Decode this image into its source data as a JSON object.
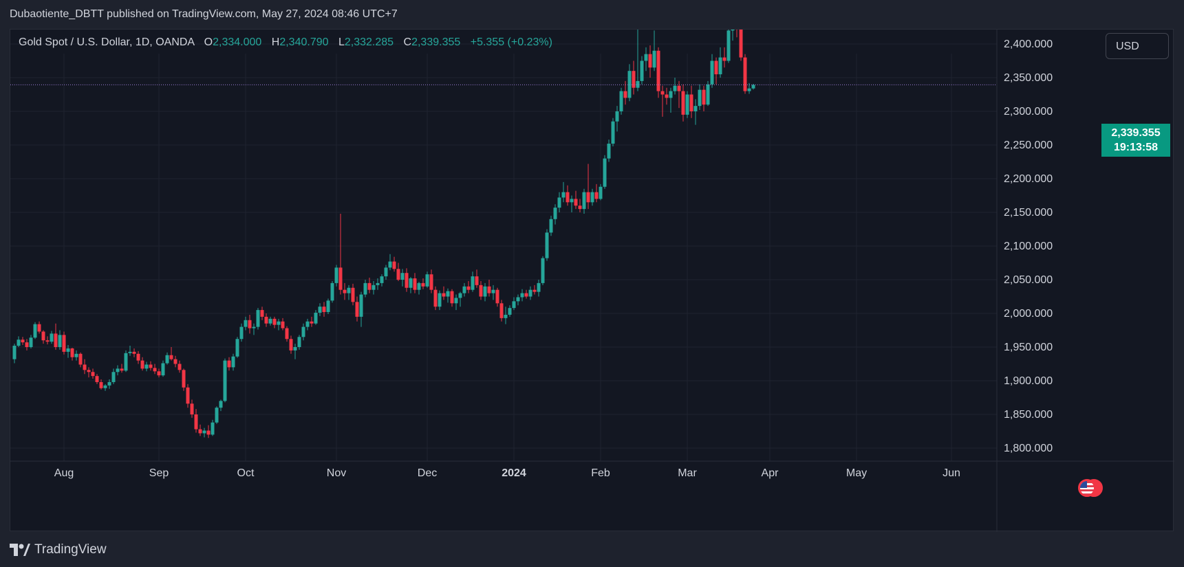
{
  "publisher_line": "Dubaotiente_DBTT published on TradingView.com, May 27, 2024 08:46 UTC+7",
  "legend": {
    "symbol": "Gold Spot / U.S. Dollar, 1D, OANDA",
    "o_label": "O",
    "open": "2,334.000",
    "h_label": "H",
    "high": "2,340.790",
    "l_label": "L",
    "low": "2,332.285",
    "c_label": "C",
    "close": "2,339.355",
    "change": "+5.355 (+0.23%)"
  },
  "currency_button": "USD",
  "last_price": {
    "price": "2,339.355",
    "countdown": "19:13:58"
  },
  "footer": {
    "brand": "TradingView"
  },
  "colors": {
    "up": "#26a69a",
    "down": "#f23645",
    "background": "#131722",
    "grid": "#1f2330",
    "text": "#d1d4dc",
    "badge": "#089981",
    "price_line": "#9c7bd6"
  },
  "icons": {
    "flag": "us-flag-icon",
    "logo": "tradingview-logo-icon"
  },
  "chart_data": {
    "type": "candlestick",
    "title": "Gold Spot / U.S. Dollar, 1D, OANDA",
    "ylim": [
      1780,
      2450
    ],
    "y_ticks": [
      "1,800.000",
      "1,850.000",
      "1,900.000",
      "1,950.000",
      "2,000.000",
      "2,050.000",
      "2,100.000",
      "2,150.000",
      "2,200.000",
      "2,250.000",
      "2,300.000",
      "2,350.000",
      "2,400.000"
    ],
    "x_labels": [
      {
        "label": "Aug",
        "index": 12
      },
      {
        "label": "Sep",
        "index": 35
      },
      {
        "label": "Oct",
        "index": 56
      },
      {
        "label": "Nov",
        "index": 78
      },
      {
        "label": "Dec",
        "index": 100
      },
      {
        "label": "2024",
        "index": 121
      },
      {
        "label": "Feb",
        "index": 142
      },
      {
        "label": "Mar",
        "index": 163
      },
      {
        "label": "Apr",
        "index": 183
      },
      {
        "label": "May",
        "index": 204
      },
      {
        "label": "Jun",
        "index": 227
      }
    ],
    "last_close": 2339.355,
    "candles": [
      [
        1932,
        1955,
        1926,
        1952
      ],
      [
        1952,
        1966,
        1950,
        1961
      ],
      [
        1961,
        1965,
        1953,
        1957
      ],
      [
        1957,
        1962,
        1945,
        1950
      ],
      [
        1950,
        1968,
        1948,
        1964
      ],
      [
        1964,
        1987,
        1962,
        1984
      ],
      [
        1984,
        1988,
        1970,
        1973
      ],
      [
        1973,
        1975,
        1955,
        1960
      ],
      [
        1960,
        1966,
        1954,
        1958
      ],
      [
        1958,
        1974,
        1955,
        1970
      ],
      [
        1970,
        1985,
        1946,
        1950
      ],
      [
        1950,
        1975,
        1946,
        1968
      ],
      [
        1968,
        1973,
        1939,
        1943
      ],
      [
        1943,
        1953,
        1934,
        1948
      ],
      [
        1948,
        1949,
        1930,
        1935
      ],
      [
        1935,
        1945,
        1930,
        1940
      ],
      [
        1940,
        1942,
        1920,
        1924
      ],
      [
        1924,
        1932,
        1910,
        1916
      ],
      [
        1916,
        1920,
        1905,
        1913
      ],
      [
        1913,
        1918,
        1903,
        1907
      ],
      [
        1907,
        1910,
        1895,
        1898
      ],
      [
        1898,
        1902,
        1887,
        1889
      ],
      [
        1889,
        1895,
        1885,
        1893
      ],
      [
        1893,
        1902,
        1888,
        1898
      ],
      [
        1898,
        1918,
        1895,
        1913
      ],
      [
        1913,
        1923,
        1908,
        1918
      ],
      [
        1918,
        1925,
        1912,
        1915
      ],
      [
        1915,
        1945,
        1913,
        1941
      ],
      [
        1941,
        1952,
        1937,
        1943
      ],
      [
        1943,
        1948,
        1935,
        1940
      ],
      [
        1940,
        1944,
        1925,
        1930
      ],
      [
        1930,
        1935,
        1915,
        1918
      ],
      [
        1918,
        1928,
        1914,
        1924
      ],
      [
        1924,
        1929,
        1915,
        1919
      ],
      [
        1919,
        1925,
        1910,
        1914
      ],
      [
        1914,
        1918,
        1905,
        1908
      ],
      [
        1908,
        1930,
        1906,
        1926
      ],
      [
        1926,
        1942,
        1924,
        1938
      ],
      [
        1938,
        1950,
        1930,
        1932
      ],
      [
        1932,
        1937,
        1920,
        1925
      ],
      [
        1925,
        1930,
        1912,
        1916
      ],
      [
        1916,
        1918,
        1885,
        1890
      ],
      [
        1890,
        1895,
        1860,
        1866
      ],
      [
        1866,
        1872,
        1845,
        1850
      ],
      [
        1850,
        1858,
        1823,
        1828
      ],
      [
        1828,
        1835,
        1818,
        1822
      ],
      [
        1822,
        1830,
        1816,
        1826
      ],
      [
        1826,
        1834,
        1815,
        1820
      ],
      [
        1820,
        1842,
        1818,
        1838
      ],
      [
        1838,
        1862,
        1836,
        1860
      ],
      [
        1860,
        1872,
        1855,
        1870
      ],
      [
        1870,
        1933,
        1868,
        1930
      ],
      [
        1930,
        1935,
        1915,
        1920
      ],
      [
        1920,
        1940,
        1915,
        1936
      ],
      [
        1936,
        1965,
        1934,
        1962
      ],
      [
        1962,
        1985,
        1958,
        1980
      ],
      [
        1980,
        1995,
        1975,
        1990
      ],
      [
        1990,
        1998,
        1970,
        1978
      ],
      [
        1978,
        1985,
        1968,
        1980
      ],
      [
        1980,
        2008,
        1976,
        2005
      ],
      [
        2005,
        2010,
        1990,
        1995
      ],
      [
        1995,
        2000,
        1980,
        1985
      ],
      [
        1985,
        1995,
        1982,
        1992
      ],
      [
        1992,
        1995,
        1978,
        1983
      ],
      [
        1983,
        1992,
        1975,
        1988
      ],
      [
        1988,
        1993,
        1975,
        1978
      ],
      [
        1978,
        1981,
        1958,
        1962
      ],
      [
        1962,
        1967,
        1940,
        1945
      ],
      [
        1945,
        1955,
        1932,
        1950
      ],
      [
        1950,
        1968,
        1946,
        1965
      ],
      [
        1965,
        1985,
        1960,
        1980
      ],
      [
        1980,
        1992,
        1975,
        1988
      ],
      [
        1988,
        1995,
        1980,
        1985
      ],
      [
        1985,
        2005,
        1983,
        2001
      ],
      [
        2001,
        2015,
        1996,
        2010
      ],
      [
        2010,
        2017,
        1995,
        2002
      ],
      [
        2002,
        2022,
        1999,
        2019
      ],
      [
        2019,
        2048,
        2016,
        2045
      ],
      [
        2045,
        2072,
        2040,
        2068
      ],
      [
        2068,
        2148,
        2028,
        2035
      ],
      [
        2035,
        2045,
        2020,
        2030
      ],
      [
        2030,
        2042,
        2020,
        2038
      ],
      [
        2038,
        2044,
        2012,
        2017
      ],
      [
        2017,
        2025,
        1988,
        1995
      ],
      [
        1995,
        2032,
        1980,
        2028
      ],
      [
        2028,
        2050,
        2024,
        2045
      ],
      [
        2045,
        2053,
        2030,
        2035
      ],
      [
        2035,
        2048,
        2028,
        2042
      ],
      [
        2042,
        2052,
        2035,
        2045
      ],
      [
        2045,
        2058,
        2040,
        2055
      ],
      [
        2055,
        2072,
        2050,
        2068
      ],
      [
        2068,
        2088,
        2064,
        2077
      ],
      [
        2077,
        2084,
        2062,
        2066
      ],
      [
        2066,
        2075,
        2048,
        2050
      ],
      [
        2050,
        2066,
        2040,
        2060
      ],
      [
        2060,
        2067,
        2032,
        2038
      ],
      [
        2038,
        2054,
        2030,
        2052
      ],
      [
        2052,
        2060,
        2030,
        2035
      ],
      [
        2035,
        2047,
        2028,
        2045
      ],
      [
        2045,
        2052,
        2036,
        2040
      ],
      [
        2040,
        2062,
        2038,
        2058
      ],
      [
        2058,
        2065,
        2030,
        2035
      ],
      [
        2035,
        2040,
        2005,
        2010
      ],
      [
        2010,
        2034,
        2005,
        2030
      ],
      [
        2030,
        2040,
        2020,
        2025
      ],
      [
        2025,
        2037,
        2016,
        2033
      ],
      [
        2033,
        2036,
        2010,
        2015
      ],
      [
        2015,
        2028,
        2005,
        2023
      ],
      [
        2023,
        2032,
        2010,
        2030
      ],
      [
        2030,
        2045,
        2025,
        2040
      ],
      [
        2040,
        2048,
        2030,
        2035
      ],
      [
        2035,
        2062,
        2032,
        2055
      ],
      [
        2055,
        2065,
        2038,
        2042
      ],
      [
        2042,
        2048,
        2020,
        2025
      ],
      [
        2025,
        2045,
        2018,
        2040
      ],
      [
        2040,
        2050,
        2025,
        2030
      ],
      [
        2030,
        2042,
        2020,
        2035
      ],
      [
        2035,
        2038,
        2010,
        2015
      ],
      [
        2015,
        2020,
        1988,
        1993
      ],
      [
        1993,
        2010,
        1984,
        1998
      ],
      [
        1998,
        2012,
        1995,
        2008
      ],
      [
        2008,
        2024,
        2005,
        2018
      ],
      [
        2018,
        2028,
        2012,
        2024
      ],
      [
        2024,
        2036,
        2018,
        2030
      ],
      [
        2030,
        2035,
        2022,
        2025
      ],
      [
        2025,
        2040,
        2020,
        2035
      ],
      [
        2035,
        2042,
        2028,
        2032
      ],
      [
        2032,
        2050,
        2025,
        2045
      ],
      [
        2045,
        2085,
        2042,
        2082
      ],
      [
        2082,
        2125,
        2078,
        2120
      ],
      [
        2120,
        2145,
        2115,
        2140
      ],
      [
        2140,
        2162,
        2132,
        2157
      ],
      [
        2157,
        2180,
        2150,
        2172
      ],
      [
        2172,
        2195,
        2165,
        2180
      ],
      [
        2180,
        2190,
        2160,
        2165
      ],
      [
        2165,
        2175,
        2150,
        2170
      ],
      [
        2170,
        2182,
        2155,
        2160
      ],
      [
        2160,
        2170,
        2150,
        2155
      ],
      [
        2155,
        2185,
        2148,
        2180
      ],
      [
        2180,
        2222,
        2155,
        2165
      ],
      [
        2165,
        2185,
        2160,
        2180
      ],
      [
        2180,
        2192,
        2165,
        2170
      ],
      [
        2170,
        2192,
        2168,
        2188
      ],
      [
        2188,
        2235,
        2185,
        2230
      ],
      [
        2230,
        2258,
        2225,
        2252
      ],
      [
        2252,
        2290,
        2248,
        2285
      ],
      [
        2285,
        2308,
        2270,
        2300
      ],
      [
        2300,
        2335,
        2295,
        2330
      ],
      [
        2330,
        2345,
        2310,
        2320
      ],
      [
        2320,
        2370,
        2315,
        2360
      ],
      [
        2360,
        2375,
        2325,
        2335
      ],
      [
        2335,
        2432,
        2330,
        2345
      ],
      [
        2345,
        2382,
        2340,
        2375
      ],
      [
        2375,
        2395,
        2360,
        2385
      ],
      [
        2385,
        2398,
        2350,
        2365
      ],
      [
        2365,
        2420,
        2360,
        2390
      ],
      [
        2390,
        2395,
        2320,
        2330
      ],
      [
        2330,
        2338,
        2292,
        2325
      ],
      [
        2325,
        2335,
        2310,
        2320
      ],
      [
        2320,
        2335,
        2298,
        2330
      ],
      [
        2330,
        2350,
        2325,
        2338
      ],
      [
        2338,
        2345,
        2305,
        2330
      ],
      [
        2330,
        2340,
        2285,
        2295
      ],
      [
        2295,
        2330,
        2290,
        2325
      ],
      [
        2325,
        2338,
        2290,
        2300
      ],
      [
        2300,
        2318,
        2280,
        2308
      ],
      [
        2308,
        2340,
        2302,
        2332
      ],
      [
        2332,
        2338,
        2300,
        2310
      ],
      [
        2310,
        2345,
        2308,
        2340
      ],
      [
        2340,
        2385,
        2335,
        2375
      ],
      [
        2375,
        2380,
        2340,
        2355
      ],
      [
        2355,
        2395,
        2350,
        2380
      ],
      [
        2380,
        2395,
        2365,
        2375
      ],
      [
        2375,
        2430,
        2372,
        2420
      ],
      [
        2420,
        2450,
        2405,
        2440
      ],
      [
        2440,
        2442,
        2410,
        2425
      ],
      [
        2425,
        2432,
        2375,
        2380
      ],
      [
        2380,
        2385,
        2326,
        2330
      ],
      [
        2330,
        2342,
        2326,
        2334
      ],
      [
        2334,
        2340.79,
        2332.285,
        2339.355
      ]
    ]
  }
}
